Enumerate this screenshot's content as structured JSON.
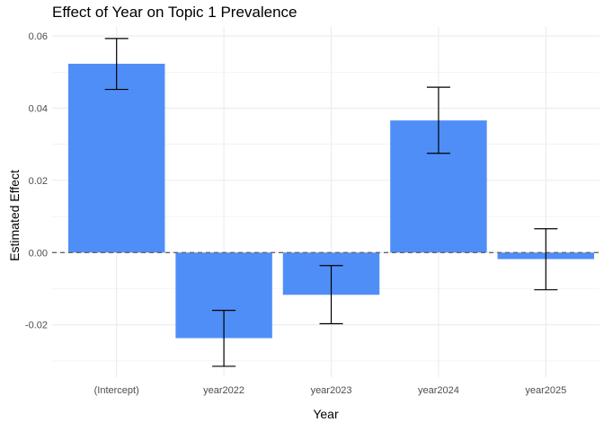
{
  "chart_data": {
    "type": "bar",
    "title": "Effect of Year on Topic 1 Prevalence",
    "xlabel": "Year",
    "ylabel": "Estimated Effect",
    "categories": [
      "(Intercept)",
      "year2022",
      "year2023",
      "year2024",
      "year2025"
    ],
    "values": [
      0.0523,
      -0.0237,
      -0.0117,
      0.0366,
      -0.0018
    ],
    "error_low": [
      0.0452,
      -0.0315,
      -0.0197,
      0.0275,
      -0.0103
    ],
    "error_high": [
      0.0593,
      -0.016,
      -0.0036,
      0.0458,
      0.0066
    ],
    "y_ticks": [
      -0.02,
      0.0,
      0.02,
      0.04,
      0.06
    ],
    "y_tick_labels": [
      "-0.02",
      "0.00",
      "0.02",
      "0.04",
      "0.06"
    ],
    "ylim": [
      -0.0345,
      0.0625
    ],
    "reference_line": 0,
    "grid": true,
    "legend": "none",
    "colors": {
      "bar": "#4F8EF7",
      "errorbar": "#000000",
      "reference_line": "#666666",
      "grid": "#ebebeb"
    }
  }
}
